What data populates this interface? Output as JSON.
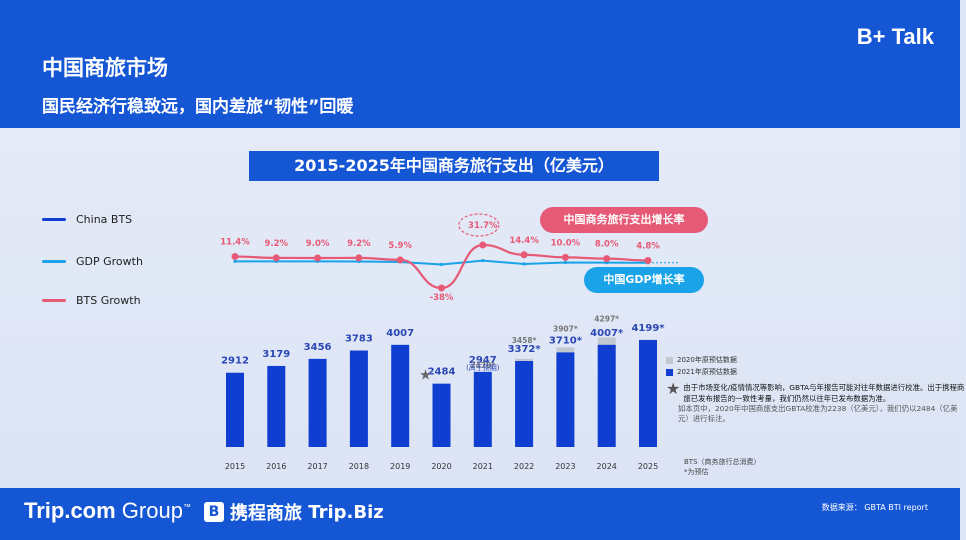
{
  "header": {
    "title": "中国商旅市场",
    "subtitle": "国民经济行稳致远，国内差旅“韧性”回暖",
    "brand": "B+ Talk"
  },
  "legend": {
    "china_bts": "China BTS",
    "gdp_growth": "GDP Growth",
    "bts_growth": "BTS Growth"
  },
  "callouts": {
    "bts_growth_label": "中国商务旅行支出增长率",
    "gdp_growth_label": "中国GDP增长率"
  },
  "side_legend": {
    "forecast_2020": "2020年原预估数据",
    "forecast_2021": "2021年原预估数据"
  },
  "notes": {
    "main": "由于市场变化/疫情情况等影响，GBTA与年报告可能对往年数据进行校准。出于携程商旅已发布报告的一致性考量，我们仍然以往年已发布数据为准。",
    "secondary": "如本页中，2020年中国商旅支出GBTA校准为2238（亿美元），我们仍以2484（亿美元）进行标注。",
    "bts_def_1": "BTS（商务旅行总消费）",
    "bts_def_2": "*为预估"
  },
  "footer": {
    "logo_trip_bold": "Trip.com",
    "logo_trip_light": " Group",
    "logo_trip_tm": "™",
    "logo_ctrip_icon": "B",
    "logo_ctrip": "携程商旅",
    "logo_tripbiz": "Trip.Biz",
    "source": "数据来源：  GBTA BTI report"
  },
  "colors": {
    "bar": "#0f3ed1",
    "forecast_bar": "#c3c7cf",
    "bts_line": "#e75a76",
    "gdp_line": "#1aa3e8",
    "gdp_pill": "#1aa3e8",
    "bts_pill": "#e75a76"
  },
  "chart_data": {
    "type": "bar",
    "title": "2015-2025年中国商务旅行支出（亿美元）",
    "categories": [
      "2015",
      "2016",
      "2017",
      "2018",
      "2019",
      "2020",
      "2021",
      "2022",
      "2023",
      "2024",
      "2025"
    ],
    "series": [
      {
        "name": "China BTS",
        "values": [
          2912,
          3179,
          3456,
          3783,
          4007,
          2484,
          2947,
          3372,
          3710,
          4007,
          4199
        ]
      },
      {
        "name": "BTS Growth",
        "unit": "%",
        "values": [
          11.4,
          9.2,
          9.0,
          9.2,
          5.9,
          -38,
          31.7,
          14.4,
          10.0,
          8.0,
          4.8
        ]
      },
      {
        "name": "GDP Growth",
        "unit": "%",
        "values": [
          7.0,
          6.9,
          6.9,
          6.8,
          6.0,
          2.2,
          8.1,
          3.0,
          5.2,
          5.0,
          4.8
        ]
      },
      {
        "name": "Original forecast",
        "values": [
          null,
          null,
          null,
          null,
          null,
          null,
          2470,
          3458,
          3907,
          4297,
          null
        ]
      }
    ],
    "bar_labels": [
      "2912",
      "3179",
      "3456",
      "3783",
      "4007",
      "2484",
      "2947",
      "3372*",
      "3710*",
      "4007*",
      "4199*"
    ],
    "growth_labels": [
      "11.4%",
      "9.2%",
      "9.0%",
      "9.2%",
      "5.9%",
      "-38%",
      "31.7%",
      "14.4%",
      "10.0%",
      "8.0%",
      "4.8%"
    ],
    "forecast_labels": [
      "",
      "",
      "",
      "",
      "",
      "",
      "2470*",
      "3458*",
      "3907*",
      "4297*",
      ""
    ],
    "annotation_2021": "(高于预期)",
    "star_2020": "★",
    "ylim": [
      0,
      4500
    ]
  }
}
